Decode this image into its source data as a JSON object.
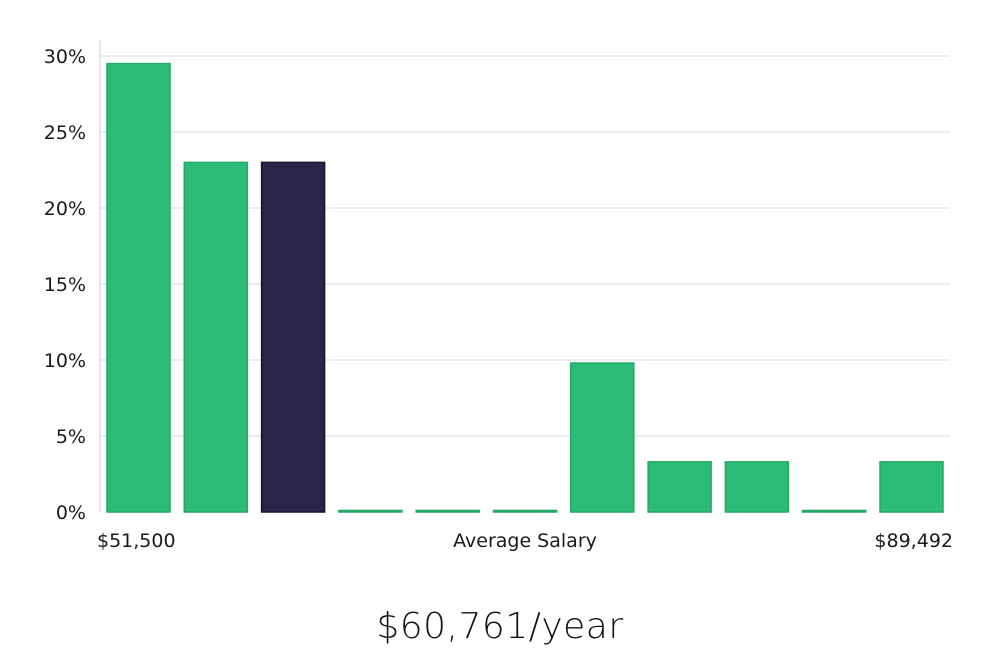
{
  "chart_data": {
    "type": "bar",
    "categories": [
      "1",
      "2",
      "3",
      "4",
      "5",
      "6",
      "7",
      "8",
      "9",
      "10",
      "11"
    ],
    "values": [
      29.5,
      23,
      23,
      0.1,
      0.1,
      0.1,
      9.8,
      3.3,
      3.3,
      0.1,
      3.3
    ],
    "highlight_index": 2,
    "ylim": [
      0,
      30
    ],
    "yticks": [
      0,
      5,
      10,
      15,
      20,
      25,
      30
    ],
    "ytick_suffix": "%",
    "xlabel": "Average Salary",
    "x_min_label": "$51,500",
    "x_max_label": "$89,492",
    "grid": true,
    "colors": {
      "bar": "#2bbd77",
      "highlight": "#2a2548",
      "grid": "#e6e6ec",
      "axis": "#cfcfd6"
    }
  },
  "summary": {
    "salary_text": "$60,761/year"
  }
}
